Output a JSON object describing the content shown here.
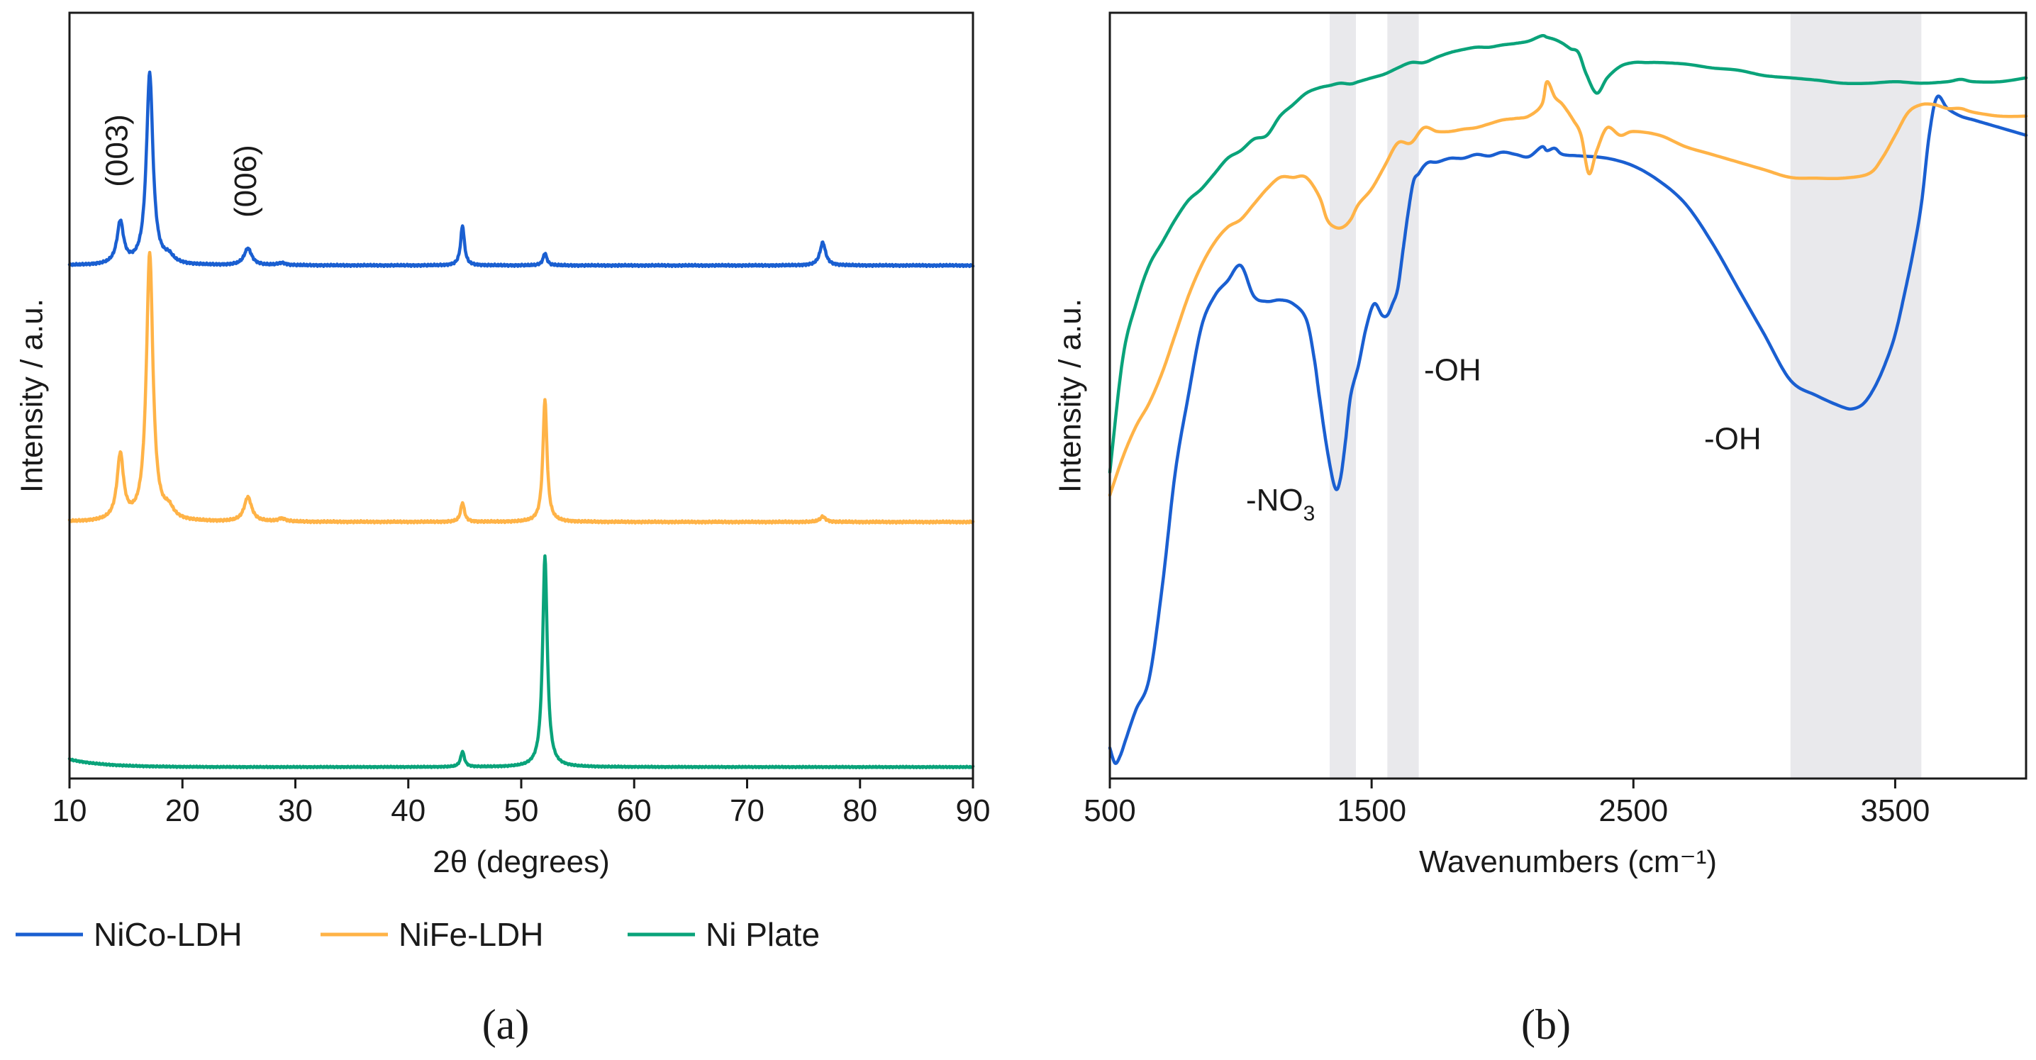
{
  "colors": {
    "NiCo-LDH": "#1a5fd1",
    "NiFe-LDH": "#ffb347",
    "Ni Plate": "#0aa37a",
    "band": "#e9e9ec",
    "axis": "#1a1a1a"
  },
  "legend": {
    "items": [
      "NiCo-LDH",
      "NiFe-LDH",
      "Ni Plate"
    ]
  },
  "chart_data": [
    {
      "id": "a",
      "type": "line",
      "panel_label": "(a)",
      "title": "",
      "xlabel": "2θ (degrees)",
      "ylabel": "Intensity / a.u.",
      "xlim": [
        10,
        90
      ],
      "ylim": [
        0,
        100
      ],
      "xticks": [
        10,
        20,
        30,
        40,
        50,
        60,
        70,
        80,
        90
      ],
      "grid": false,
      "annotations": [
        {
          "text": "(003)",
          "x": 14.4,
          "y": 82,
          "rotate": -90
        },
        {
          "text": "(006)",
          "x": 25.8,
          "y": 78,
          "rotate": -90
        }
      ],
      "series": [
        {
          "name": "NiCo-LDH",
          "baseline": 67,
          "noise": 0.15,
          "slope": 0,
          "peaks": [
            [
              14.5,
              5.5,
              0.35
            ],
            [
              17.1,
              25,
              0.35
            ],
            [
              18.8,
              0.9,
              0.5
            ],
            [
              25.8,
              2.2,
              0.4
            ],
            [
              28.8,
              0.3,
              0.4
            ],
            [
              44.8,
              5.2,
              0.2
            ],
            [
              52.1,
              1.6,
              0.2
            ],
            [
              76.7,
              3.0,
              0.3
            ]
          ]
        },
        {
          "name": "NiFe-LDH",
          "baseline": 33.5,
          "noise": 0.15,
          "slope": 0,
          "peaks": [
            [
              14.5,
              8.5,
              0.35
            ],
            [
              17.1,
              35,
              0.35
            ],
            [
              18.8,
              1.3,
              0.5
            ],
            [
              25.8,
              3.2,
              0.4
            ],
            [
              28.8,
              0.4,
              0.4
            ],
            [
              44.8,
              2.5,
              0.2
            ],
            [
              52.1,
              16,
              0.22
            ],
            [
              76.7,
              0.7,
              0.3
            ]
          ]
        },
        {
          "name": "Ni Plate",
          "baseline": 1.5,
          "noise": 0.1,
          "slope": 1,
          "peaks": [
            [
              44.8,
              2.0,
              0.2
            ],
            [
              52.1,
              27.5,
              0.25
            ]
          ]
        }
      ]
    },
    {
      "id": "b",
      "type": "line",
      "panel_label": "(b)",
      "title": "",
      "xlabel": "Wavenumbers (cm⁻¹)",
      "ylabel": "Intensity / a.u.",
      "xlim": [
        500,
        4000
      ],
      "ylim": [
        0,
        100
      ],
      "xticks": [
        500,
        1500,
        2500,
        3500
      ],
      "grid": false,
      "bands": [
        [
          1340,
          1440
        ],
        [
          1560,
          1680
        ],
        [
          3100,
          3600
        ]
      ],
      "annotations": [
        {
          "text": "-NO",
          "sub": "3",
          "x": 1020,
          "y": 35
        },
        {
          "text": "-OH",
          "x": 1700,
          "y": 52
        },
        {
          "text": "-OH",
          "x": 2770,
          "y": 43
        }
      ],
      "series": [
        {
          "name": "NiCo-LDH",
          "x": [
            500,
            520,
            540,
            560,
            600,
            650,
            700,
            750,
            800,
            850,
            900,
            950,
            1000,
            1050,
            1100,
            1150,
            1200,
            1250,
            1280,
            1300,
            1330,
            1360,
            1380,
            1400,
            1420,
            1450,
            1480,
            1510,
            1540,
            1560,
            1580,
            1600,
            1620,
            1640,
            1660,
            1680,
            1700,
            1720,
            1750,
            1800,
            1850,
            1900,
            1950,
            2000,
            2050,
            2100,
            2150,
            2170,
            2200,
            2230,
            2300,
            2400,
            2500,
            2600,
            2700,
            2800,
            2900,
            3000,
            3100,
            3200,
            3300,
            3340,
            3380,
            3420,
            3460,
            3500,
            3540,
            3570,
            3600,
            3630,
            3660,
            3700,
            3750,
            3800,
            3850,
            3900,
            4000
          ],
          "y": [
            4,
            2,
            3,
            5,
            9,
            13,
            25,
            40,
            50,
            59,
            63,
            65,
            67,
            63,
            62.3,
            62.5,
            62,
            60,
            55,
            50,
            43,
            38,
            39,
            44,
            50,
            54,
            59,
            62,
            60.5,
            60.5,
            62,
            64,
            69,
            74,
            78,
            79,
            80,
            80.5,
            80.5,
            81,
            81,
            81.5,
            81.3,
            81.8,
            81.5,
            81.2,
            82.5,
            82,
            82.3,
            81.5,
            81.3,
            81,
            80,
            78,
            75,
            70,
            64,
            58,
            52,
            50,
            48.5,
            48.3,
            49,
            51,
            54,
            58,
            64,
            69,
            75,
            84,
            89,
            87.5,
            86.5,
            86,
            85.5,
            85,
            84
          ]
        },
        {
          "name": "NiFe-LDH",
          "x": [
            500,
            550,
            600,
            650,
            700,
            750,
            800,
            850,
            900,
            950,
            1000,
            1050,
            1100,
            1150,
            1200,
            1250,
            1300,
            1330,
            1360,
            1390,
            1420,
            1450,
            1500,
            1550,
            1600,
            1650,
            1700,
            1750,
            1800,
            1850,
            1900,
            1950,
            2000,
            2050,
            2100,
            2150,
            2170,
            2200,
            2230,
            2270,
            2300,
            2330,
            2360,
            2400,
            2450,
            2500,
            2600,
            2700,
            2800,
            2900,
            3000,
            3100,
            3200,
            3300,
            3400,
            3450,
            3500,
            3550,
            3600,
            3650,
            3700,
            3750,
            3800,
            3900,
            4000
          ],
          "y": [
            37,
            42,
            46,
            49,
            53,
            58,
            63,
            67,
            70,
            72,
            73,
            75,
            77,
            78.5,
            78.5,
            78.5,
            76,
            73,
            72,
            72,
            73,
            75,
            77,
            80,
            83,
            83,
            85,
            84.5,
            84.5,
            84.8,
            85,
            85.5,
            86,
            86.2,
            86.5,
            88,
            91,
            89,
            88,
            86,
            84,
            79,
            82,
            85,
            84,
            84.5,
            84,
            82.5,
            81.5,
            80.5,
            79.5,
            78.5,
            78.4,
            78.4,
            79,
            81,
            84,
            87,
            88,
            88,
            87.5,
            87.5,
            87,
            86.5,
            86.5
          ]
        },
        {
          "name": "Ni Plate",
          "x": [
            500,
            550,
            600,
            650,
            700,
            750,
            800,
            850,
            900,
            950,
            1000,
            1050,
            1100,
            1150,
            1200,
            1250,
            1300,
            1340,
            1380,
            1420,
            1450,
            1500,
            1550,
            1600,
            1650,
            1700,
            1750,
            1800,
            1850,
            1900,
            1950,
            2000,
            2050,
            2100,
            2150,
            2170,
            2200,
            2230,
            2260,
            2290,
            2320,
            2360,
            2400,
            2450,
            2500,
            2550,
            2600,
            2700,
            2800,
            2900,
            3000,
            3100,
            3200,
            3300,
            3400,
            3500,
            3600,
            3700,
            3750,
            3800,
            3900,
            4000
          ],
          "y": [
            40,
            55,
            62,
            67,
            70,
            73,
            75.5,
            77,
            79,
            81,
            82,
            83.5,
            84,
            86.5,
            88,
            89.5,
            90.2,
            90.5,
            90.8,
            90.7,
            91,
            91.5,
            92,
            92.8,
            93.5,
            93.5,
            94.2,
            94.8,
            95.2,
            95.5,
            95.5,
            95.8,
            96,
            96.3,
            97,
            96.8,
            96.5,
            96,
            95.3,
            94.8,
            92,
            89.5,
            91.5,
            93,
            93.5,
            93.5,
            93.5,
            93.3,
            92.8,
            92.5,
            91.8,
            91.5,
            91.2,
            90.8,
            90.8,
            91,
            90.8,
            91,
            91.3,
            91,
            91,
            91.5
          ]
        }
      ]
    }
  ]
}
